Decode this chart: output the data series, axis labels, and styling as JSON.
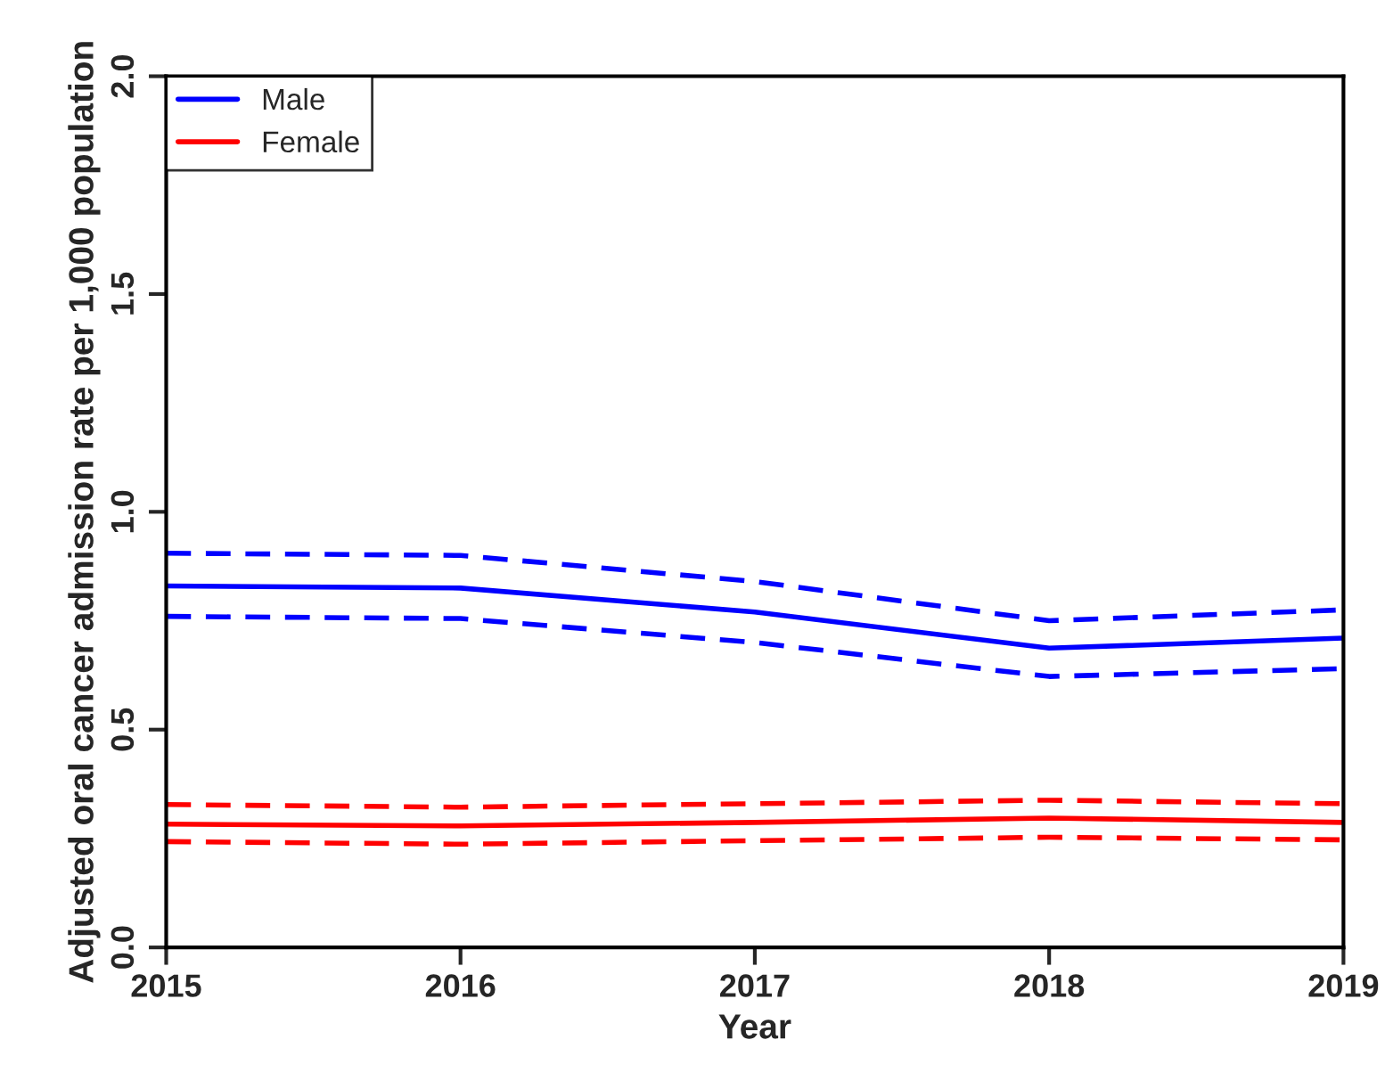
{
  "chart_data": {
    "type": "line",
    "xlabel": "Year",
    "ylabel": "Adjusted oral cancer admission rate per 1,000 population",
    "x": [
      2015,
      2016,
      2017,
      2018,
      2019
    ],
    "series": [
      {
        "name": "Male",
        "color": "#0000ff",
        "values": [
          0.83,
          0.825,
          0.77,
          0.687,
          0.71
        ]
      },
      {
        "name": "Female",
        "color": "#ff0000",
        "values": [
          0.283,
          0.279,
          0.287,
          0.297,
          0.287
        ]
      },
      {
        "color": "#0000ff",
        "line_style": "dashed",
        "values": [
          0.905,
          0.9,
          0.84,
          0.75,
          0.775
        ]
      },
      {
        "color": "#0000ff",
        "line_style": "dashed",
        "values": [
          0.76,
          0.755,
          0.7,
          0.622,
          0.64
        ]
      },
      {
        "color": "#ff0000",
        "line_style": "dashed",
        "values": [
          0.328,
          0.322,
          0.33,
          0.338,
          0.33
        ]
      },
      {
        "color": "#ff0000",
        "line_style": "dashed",
        "values": [
          0.243,
          0.237,
          0.245,
          0.253,
          0.247
        ]
      }
    ],
    "xlim": [
      2015,
      2019
    ],
    "xticks": [
      2015,
      2016,
      2017,
      2018,
      2019
    ],
    "ylim": [
      0,
      2
    ],
    "yticks": [
      {
        "value": 0,
        "label": "0.0"
      },
      {
        "value": 0.5,
        "label": "0.5"
      },
      {
        "value": 1,
        "label": "1.0"
      },
      {
        "value": 1.5,
        "label": "1.5"
      },
      {
        "value": 2,
        "label": "2.0"
      }
    ],
    "grid": false,
    "legend": "top left",
    "line_style": "solid",
    "marker": "none"
  }
}
